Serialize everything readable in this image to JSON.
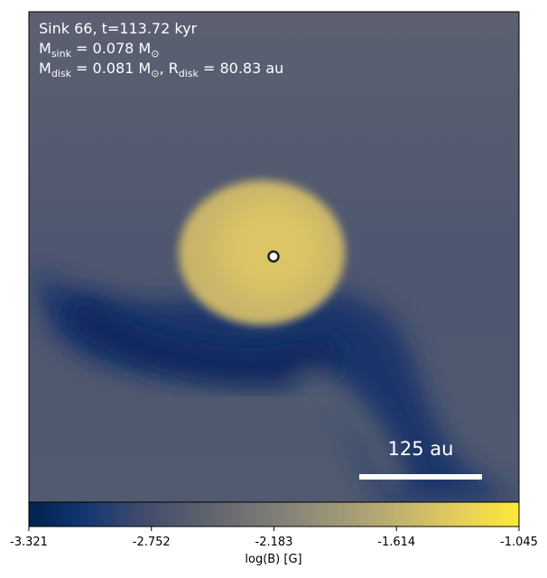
{
  "chart_data": {
    "type": "colormap-image",
    "annotations": [
      [
        {
          "text": "Sink 66, t=113.72 kyr"
        }
      ],
      [
        {
          "text": "M"
        },
        {
          "sub": "sink"
        },
        {
          "text": " = 0.078 M"
        },
        {
          "sub": "⊙"
        }
      ],
      [
        {
          "text": "M"
        },
        {
          "sub": "disk"
        },
        {
          "text": " = 0.081 M"
        },
        {
          "sub": "⊙"
        },
        {
          "text": ", R"
        },
        {
          "sub": "disk"
        },
        {
          "text": " = 80.83 au"
        }
      ]
    ],
    "scale_bar_label": "125 au",
    "colorbar": {
      "label": "log(B) [G]",
      "colormap": "cividis",
      "lim": [
        -3.321,
        -1.045
      ],
      "ticks": [
        -3.321,
        -2.752,
        -2.183,
        -1.614,
        -1.045
      ]
    }
  }
}
